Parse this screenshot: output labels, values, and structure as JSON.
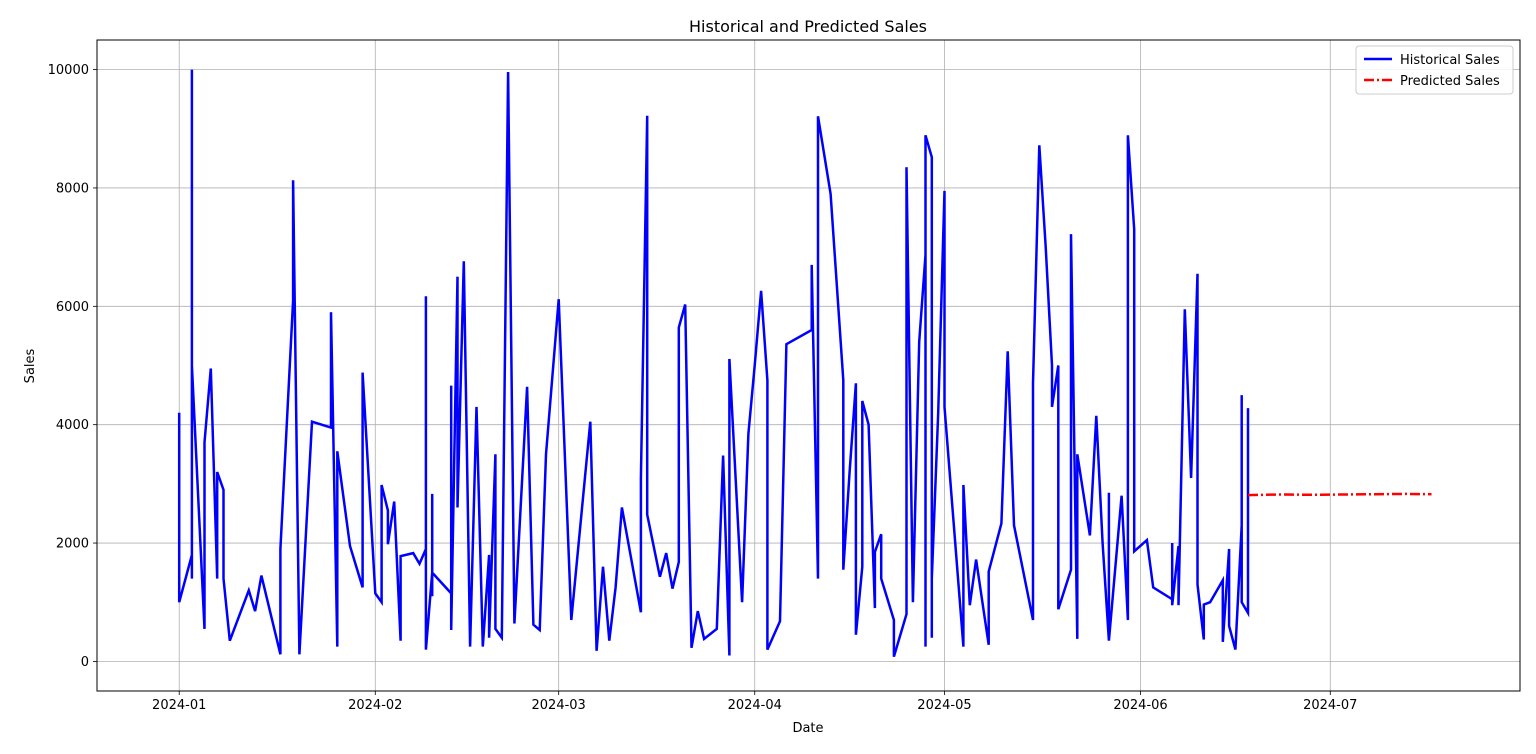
{
  "chart_data": {
    "type": "line",
    "title": "Historical and Predicted Sales",
    "xlabel": "Date",
    "ylabel": "Sales",
    "x_range": [
      "2023-12-19",
      "2024-07-31"
    ],
    "ylim": [
      -500,
      10500
    ],
    "grid": true,
    "legend_position": "top-right",
    "x_ticks": [
      "2024-01",
      "2024-02",
      "2024-03",
      "2024-04",
      "2024-05",
      "2024-06",
      "2024-07"
    ],
    "x_tick_dates": [
      "2024-01-01",
      "2024-02-01",
      "2024-03-01",
      "2024-04-01",
      "2024-05-01",
      "2024-06-01",
      "2024-07-01"
    ],
    "y_ticks": [
      0,
      2000,
      4000,
      6000,
      8000,
      10000
    ],
    "y_tick_labels": [
      "0",
      "2000",
      "4000",
      "6000",
      "8000",
      "10000"
    ],
    "series": [
      {
        "name": "Historical Sales",
        "color": "#0000ff",
        "style": "solid",
        "points": [
          [
            "2024-01-01",
            4200
          ],
          [
            "2024-01-01",
            1000
          ],
          [
            "2024-01-03",
            1800
          ],
          [
            "2024-01-03",
            10000
          ],
          [
            "2024-01-03",
            1400
          ],
          [
            "2024-01-03",
            5000
          ],
          [
            "2024-01-05",
            550
          ],
          [
            "2024-01-05",
            3700
          ],
          [
            "2024-01-06",
            4950
          ],
          [
            "2024-01-07",
            1400
          ],
          [
            "2024-01-07",
            3200
          ],
          [
            "2024-01-08",
            2900
          ],
          [
            "2024-01-08",
            1400
          ],
          [
            "2024-01-09",
            350
          ],
          [
            "2024-01-12",
            1200
          ],
          [
            "2024-01-13",
            850
          ],
          [
            "2024-01-14",
            1450
          ],
          [
            "2024-01-17",
            120
          ],
          [
            "2024-01-17",
            1900
          ],
          [
            "2024-01-19",
            6100
          ],
          [
            "2024-01-19",
            8130
          ],
          [
            "2024-01-20",
            120
          ],
          [
            "2024-01-22",
            4050
          ],
          [
            "2024-01-25",
            3950
          ],
          [
            "2024-01-25",
            5900
          ],
          [
            "2024-01-26",
            250
          ],
          [
            "2024-01-26",
            3550
          ],
          [
            "2024-01-28",
            1950
          ],
          [
            "2024-01-30",
            1250
          ],
          [
            "2024-01-30",
            4880
          ],
          [
            "2024-02-01",
            1150
          ],
          [
            "2024-02-02",
            1000
          ],
          [
            "2024-02-02",
            2980
          ],
          [
            "2024-02-03",
            2550
          ],
          [
            "2024-02-03",
            1980
          ],
          [
            "2024-02-04",
            2700
          ],
          [
            "2024-02-05",
            350
          ],
          [
            "2024-02-05",
            1780
          ],
          [
            "2024-02-07",
            1830
          ],
          [
            "2024-02-08",
            1650
          ],
          [
            "2024-02-09",
            1900
          ],
          [
            "2024-02-09",
            6170
          ],
          [
            "2024-02-09",
            200
          ],
          [
            "2024-02-10",
            1500
          ],
          [
            "2024-02-10",
            2830
          ],
          [
            "2024-02-10",
            1100
          ],
          [
            "2024-02-10",
            1500
          ],
          [
            "2024-02-13",
            1150
          ],
          [
            "2024-02-13",
            4660
          ],
          [
            "2024-02-13",
            530
          ],
          [
            "2024-02-14",
            6500
          ],
          [
            "2024-02-14",
            2600
          ],
          [
            "2024-02-15",
            6760
          ],
          [
            "2024-02-16",
            250
          ],
          [
            "2024-02-17",
            4300
          ],
          [
            "2024-02-18",
            250
          ],
          [
            "2024-02-19",
            1800
          ],
          [
            "2024-02-19",
            400
          ],
          [
            "2024-02-20",
            3500
          ],
          [
            "2024-02-20",
            550
          ],
          [
            "2024-02-21",
            400
          ],
          [
            "2024-02-22",
            9960
          ],
          [
            "2024-02-23",
            640
          ],
          [
            "2024-02-25",
            4640
          ],
          [
            "2024-02-26",
            620
          ],
          [
            "2024-02-27",
            530
          ],
          [
            "2024-02-28",
            3500
          ],
          [
            "2024-03-01",
            6120
          ],
          [
            "2024-03-03",
            700
          ],
          [
            "2024-03-06",
            4050
          ],
          [
            "2024-03-07",
            180
          ],
          [
            "2024-03-08",
            1600
          ],
          [
            "2024-03-09",
            350
          ],
          [
            "2024-03-10",
            1250
          ],
          [
            "2024-03-11",
            2600
          ],
          [
            "2024-03-14",
            830
          ],
          [
            "2024-03-14",
            3100
          ],
          [
            "2024-03-15",
            9220
          ],
          [
            "2024-03-15",
            2480
          ],
          [
            "2024-03-17",
            1430
          ],
          [
            "2024-03-18",
            1830
          ],
          [
            "2024-03-19",
            1230
          ],
          [
            "2024-03-20",
            1680
          ],
          [
            "2024-03-20",
            5640
          ],
          [
            "2024-03-21",
            6030
          ],
          [
            "2024-03-22",
            230
          ],
          [
            "2024-03-23",
            850
          ],
          [
            "2024-03-24",
            380
          ],
          [
            "2024-03-26",
            550
          ],
          [
            "2024-03-27",
            3480
          ],
          [
            "2024-03-28",
            100
          ],
          [
            "2024-03-28",
            5110
          ],
          [
            "2024-03-30",
            1000
          ],
          [
            "2024-03-31",
            3850
          ],
          [
            "2024-04-01",
            5000
          ],
          [
            "2024-04-02",
            6260
          ],
          [
            "2024-04-03",
            4750
          ],
          [
            "2024-04-03",
            200
          ],
          [
            "2024-04-05",
            680
          ],
          [
            "2024-04-06",
            5360
          ],
          [
            "2024-04-10",
            5600
          ],
          [
            "2024-04-10",
            6700
          ],
          [
            "2024-04-11",
            1400
          ],
          [
            "2024-04-11",
            9210
          ],
          [
            "2024-04-13",
            7900
          ],
          [
            "2024-04-15",
            4750
          ],
          [
            "2024-04-15",
            1550
          ],
          [
            "2024-04-16",
            3200
          ],
          [
            "2024-04-17",
            4700
          ],
          [
            "2024-04-17",
            450
          ],
          [
            "2024-04-18",
            1600
          ],
          [
            "2024-04-18",
            4400
          ],
          [
            "2024-04-19",
            4000
          ],
          [
            "2024-04-20",
            900
          ],
          [
            "2024-04-20",
            1850
          ],
          [
            "2024-04-21",
            2150
          ],
          [
            "2024-04-21",
            1400
          ],
          [
            "2024-04-23",
            700
          ],
          [
            "2024-04-23",
            80
          ],
          [
            "2024-04-25",
            800
          ],
          [
            "2024-04-25",
            8350
          ],
          [
            "2024-04-26",
            1000
          ],
          [
            "2024-04-27",
            5400
          ],
          [
            "2024-04-28",
            6870
          ],
          [
            "2024-04-28",
            250
          ],
          [
            "2024-04-28",
            8890
          ],
          [
            "2024-04-29",
            8520
          ],
          [
            "2024-04-29",
            400
          ],
          [
            "2024-04-29",
            1400
          ],
          [
            "2024-04-30",
            4200
          ],
          [
            "2024-05-01",
            7950
          ],
          [
            "2024-05-01",
            4300
          ],
          [
            "2024-05-04",
            250
          ],
          [
            "2024-05-04",
            2980
          ],
          [
            "2024-05-05",
            950
          ],
          [
            "2024-05-06",
            1720
          ],
          [
            "2024-05-08",
            280
          ],
          [
            "2024-05-08",
            1520
          ],
          [
            "2024-05-10",
            2330
          ],
          [
            "2024-05-11",
            5240
          ],
          [
            "2024-05-12",
            2300
          ],
          [
            "2024-05-15",
            700
          ],
          [
            "2024-05-15",
            4700
          ],
          [
            "2024-05-16",
            8720
          ],
          [
            "2024-05-17",
            7000
          ],
          [
            "2024-05-18",
            5000
          ],
          [
            "2024-05-18",
            4300
          ],
          [
            "2024-05-19",
            5000
          ],
          [
            "2024-05-19",
            3100
          ],
          [
            "2024-05-19",
            880
          ],
          [
            "2024-05-21",
            1550
          ],
          [
            "2024-05-21",
            7220
          ],
          [
            "2024-05-22",
            380
          ],
          [
            "2024-05-22",
            3500
          ],
          [
            "2024-05-24",
            2130
          ],
          [
            "2024-05-25",
            4150
          ],
          [
            "2024-05-26",
            2000
          ],
          [
            "2024-05-27",
            350
          ],
          [
            "2024-05-27",
            2850
          ],
          [
            "2024-05-27",
            350
          ],
          [
            "2024-05-29",
            2800
          ],
          [
            "2024-05-30",
            700
          ],
          [
            "2024-05-30",
            8890
          ],
          [
            "2024-05-31",
            7300
          ],
          [
            "2024-05-31",
            1860
          ],
          [
            "2024-06-02",
            2050
          ],
          [
            "2024-06-03",
            1250
          ],
          [
            "2024-06-06",
            1050
          ],
          [
            "2024-06-06",
            2000
          ],
          [
            "2024-06-06",
            950
          ],
          [
            "2024-06-07",
            1950
          ],
          [
            "2024-06-07",
            950
          ],
          [
            "2024-06-08",
            5950
          ],
          [
            "2024-06-09",
            3100
          ],
          [
            "2024-06-10",
            6550
          ],
          [
            "2024-06-10",
            1300
          ],
          [
            "2024-06-11",
            370
          ],
          [
            "2024-06-11",
            960
          ],
          [
            "2024-06-12",
            1000
          ],
          [
            "2024-06-14",
            1370
          ],
          [
            "2024-06-14",
            330
          ],
          [
            "2024-06-15",
            1900
          ],
          [
            "2024-06-15",
            600
          ],
          [
            "2024-06-16",
            200
          ],
          [
            "2024-06-17",
            2300
          ],
          [
            "2024-06-17",
            4500
          ],
          [
            "2024-06-17",
            1000
          ],
          [
            "2024-06-18",
            820
          ],
          [
            "2024-06-18",
            4280
          ]
        ]
      },
      {
        "name": "Predicted Sales",
        "color": "#ff0000",
        "style": "dashdot",
        "points": [
          [
            "2024-06-18",
            2810
          ],
          [
            "2024-06-23",
            2820
          ],
          [
            "2024-06-28",
            2815
          ],
          [
            "2024-07-03",
            2820
          ],
          [
            "2024-07-08",
            2825
          ],
          [
            "2024-07-13",
            2830
          ],
          [
            "2024-07-17",
            2825
          ]
        ]
      }
    ]
  }
}
